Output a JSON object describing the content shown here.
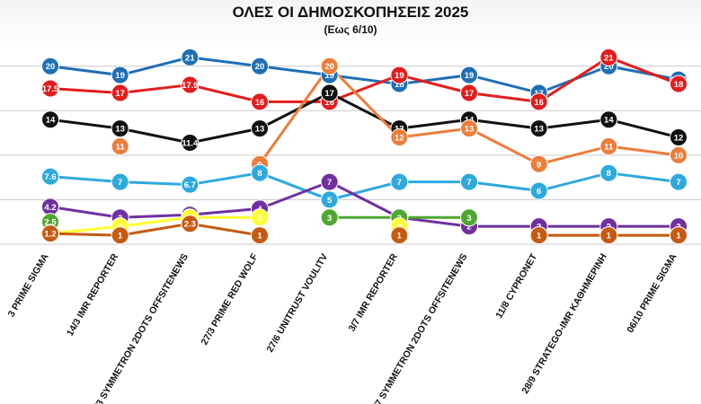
{
  "header": {
    "title": "ΟΛΕΣ ΟΙ ΔΗΜΟΣΚΟΠΗΣΕΙΣ 2025",
    "subtitle": "(Εως 6/10)"
  },
  "chart_data": {
    "type": "line",
    "title": "ΟΛΕΣ ΟΙ ΔΗΜΟΣΚΟΠΗΣΕΙΣ 2025",
    "subtitle": "(Εως 6/10)",
    "xlabel": "",
    "ylabel": "",
    "ylim": [
      0,
      23
    ],
    "grid": true,
    "legend": "none",
    "categories": [
      "3 PRIME SIGMA",
      "14/3 IMR REPORTER",
      "21/3 SYMMETRON 2DOTS OFFSITENEWS",
      "27/3 PRIME RED WOLF",
      "27/6 UNITRUST VOULITV",
      "3/7 IMR REPORTER",
      "20/7 SYMMETRON 2DOTS OFFSITENEWS",
      "11/8 CYPRONET",
      "28/9 STRATEGO-IMR ΚΑΘΗΜΕΡΙΝΗ",
      "06/10 PRIME SIGMA"
    ],
    "series": [
      {
        "color": "#1f6fb5",
        "values": [
          20,
          19,
          21,
          20,
          19,
          18,
          19,
          17,
          20,
          18.5
        ],
        "labels": [
          "20",
          "19",
          "21",
          "20",
          "19",
          "18",
          "19",
          "17",
          "20",
          "18.5"
        ]
      },
      {
        "color": "#e31d1d",
        "values": [
          17.5,
          17,
          17.9,
          16,
          16,
          19,
          17,
          16,
          21,
          18
        ],
        "labels": [
          "17.5",
          "17",
          "17.9",
          "16",
          "16",
          "19",
          "17",
          "16",
          "21",
          "18"
        ]
      },
      {
        "color": "#111111",
        "values": [
          14,
          13,
          11.4,
          13,
          17,
          13,
          14,
          13,
          14,
          12
        ],
        "labels": [
          "14",
          "13",
          "11.4",
          "13",
          "17",
          "13",
          "14",
          "13",
          "14",
          "12"
        ]
      },
      {
        "color": "#ec7d3a",
        "values": [
          null,
          11,
          null,
          9,
          20,
          12,
          13,
          9,
          11,
          10
        ],
        "labels": [
          "",
          "11",
          "",
          "9",
          "20",
          "12",
          "13",
          "9",
          "11",
          "10"
        ]
      },
      {
        "color": "#2ea9de",
        "values": [
          7.6,
          7,
          6.7,
          8,
          5,
          7,
          7,
          6,
          8,
          7
        ],
        "labels": [
          "7.6",
          "7",
          "6.7",
          "8",
          "5",
          "7",
          "7",
          "6",
          "8",
          "7"
        ]
      },
      {
        "color": "#7030a0",
        "values": [
          4.2,
          3,
          3.3,
          4,
          7,
          3,
          2,
          2,
          2,
          2
        ],
        "labels": [
          "4.2",
          "3",
          "3.3",
          "4",
          "7",
          "3",
          "2",
          "2",
          "2",
          "2"
        ]
      },
      {
        "color": "#4ea72e",
        "values": [
          2.5,
          null,
          null,
          null,
          3,
          3,
          3,
          null,
          null,
          null
        ],
        "labels": [
          "2.5",
          "",
          "",
          "",
          "3",
          "3",
          "3",
          "",
          "",
          ""
        ]
      },
      {
        "color": "#ffff33",
        "values": [
          1.2,
          2,
          3,
          3,
          null,
          2,
          null,
          1,
          1,
          1
        ],
        "labels": [
          "1.2",
          "2",
          "3",
          "3",
          "",
          "2",
          "",
          "1",
          "1",
          "1"
        ]
      },
      {
        "color": "#c55a11",
        "values": [
          1.2,
          1,
          2.3,
          1,
          null,
          1,
          null,
          1,
          1,
          1
        ],
        "labels": [
          "1.2",
          "1",
          "2.3",
          "1",
          "",
          "1",
          "",
          "1",
          "1",
          "1"
        ]
      }
    ]
  },
  "colors": {
    "grid": "#c9c9c9",
    "background": "#ffffff"
  }
}
